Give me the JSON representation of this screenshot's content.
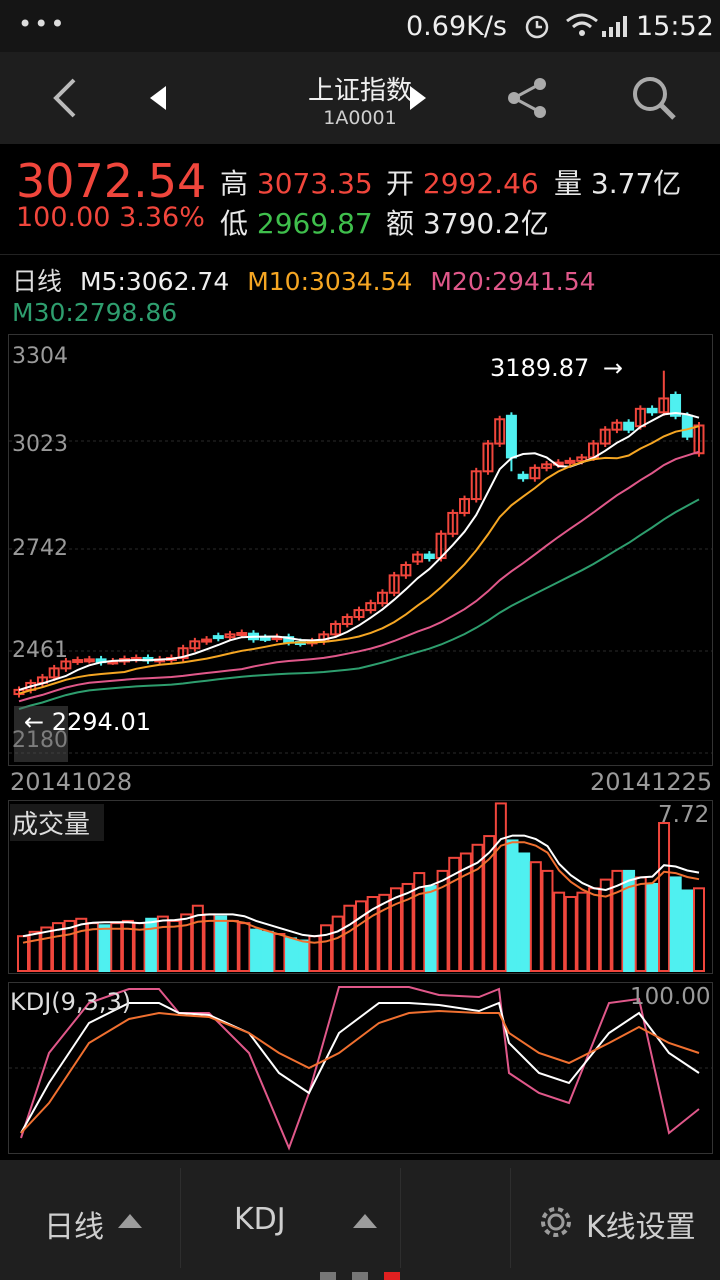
{
  "status_bar": {
    "speed": "0.69K/s",
    "time": "15:52"
  },
  "header": {
    "title": "上证指数",
    "code": "1A0001"
  },
  "quote": {
    "price": "3072.54",
    "change": "100.00",
    "change_pct": "3.36%",
    "high_label": "高",
    "high": "3073.35",
    "low_label": "低",
    "low": "2969.87",
    "open_label": "开",
    "open": "2992.46",
    "amount_label": "额",
    "amount": "3790.2亿",
    "volume_label": "量",
    "volume": "3.77亿"
  },
  "ma_legend": {
    "period": "日线",
    "m5": "M5:3062.74",
    "m10": "M10:3034.54",
    "m20": "M20:2941.54",
    "m30": "M30:2798.86"
  },
  "price_chart": {
    "y_ticks": [
      "3304",
      "3023",
      "2742",
      "2461",
      "2180"
    ],
    "max_annotation": "3189.87",
    "min_annotation": "2294.01",
    "start_date": "20141028",
    "end_date": "20141225"
  },
  "volume_chart": {
    "title": "成交量",
    "max_label": "7.72"
  },
  "kdj_chart": {
    "title": "KDJ(9,3,3)",
    "max_label": "100.00"
  },
  "bottom_bar": {
    "period_label": "日线",
    "indicator_label": "KDJ",
    "settings_label": "K线设置"
  },
  "colors": {
    "up": "#f0463c",
    "down": "#4ff0f0",
    "m5": "#ffffff",
    "m10": "#f5a623",
    "m20": "#e0588a",
    "m30": "#2e9e6e"
  }
}
